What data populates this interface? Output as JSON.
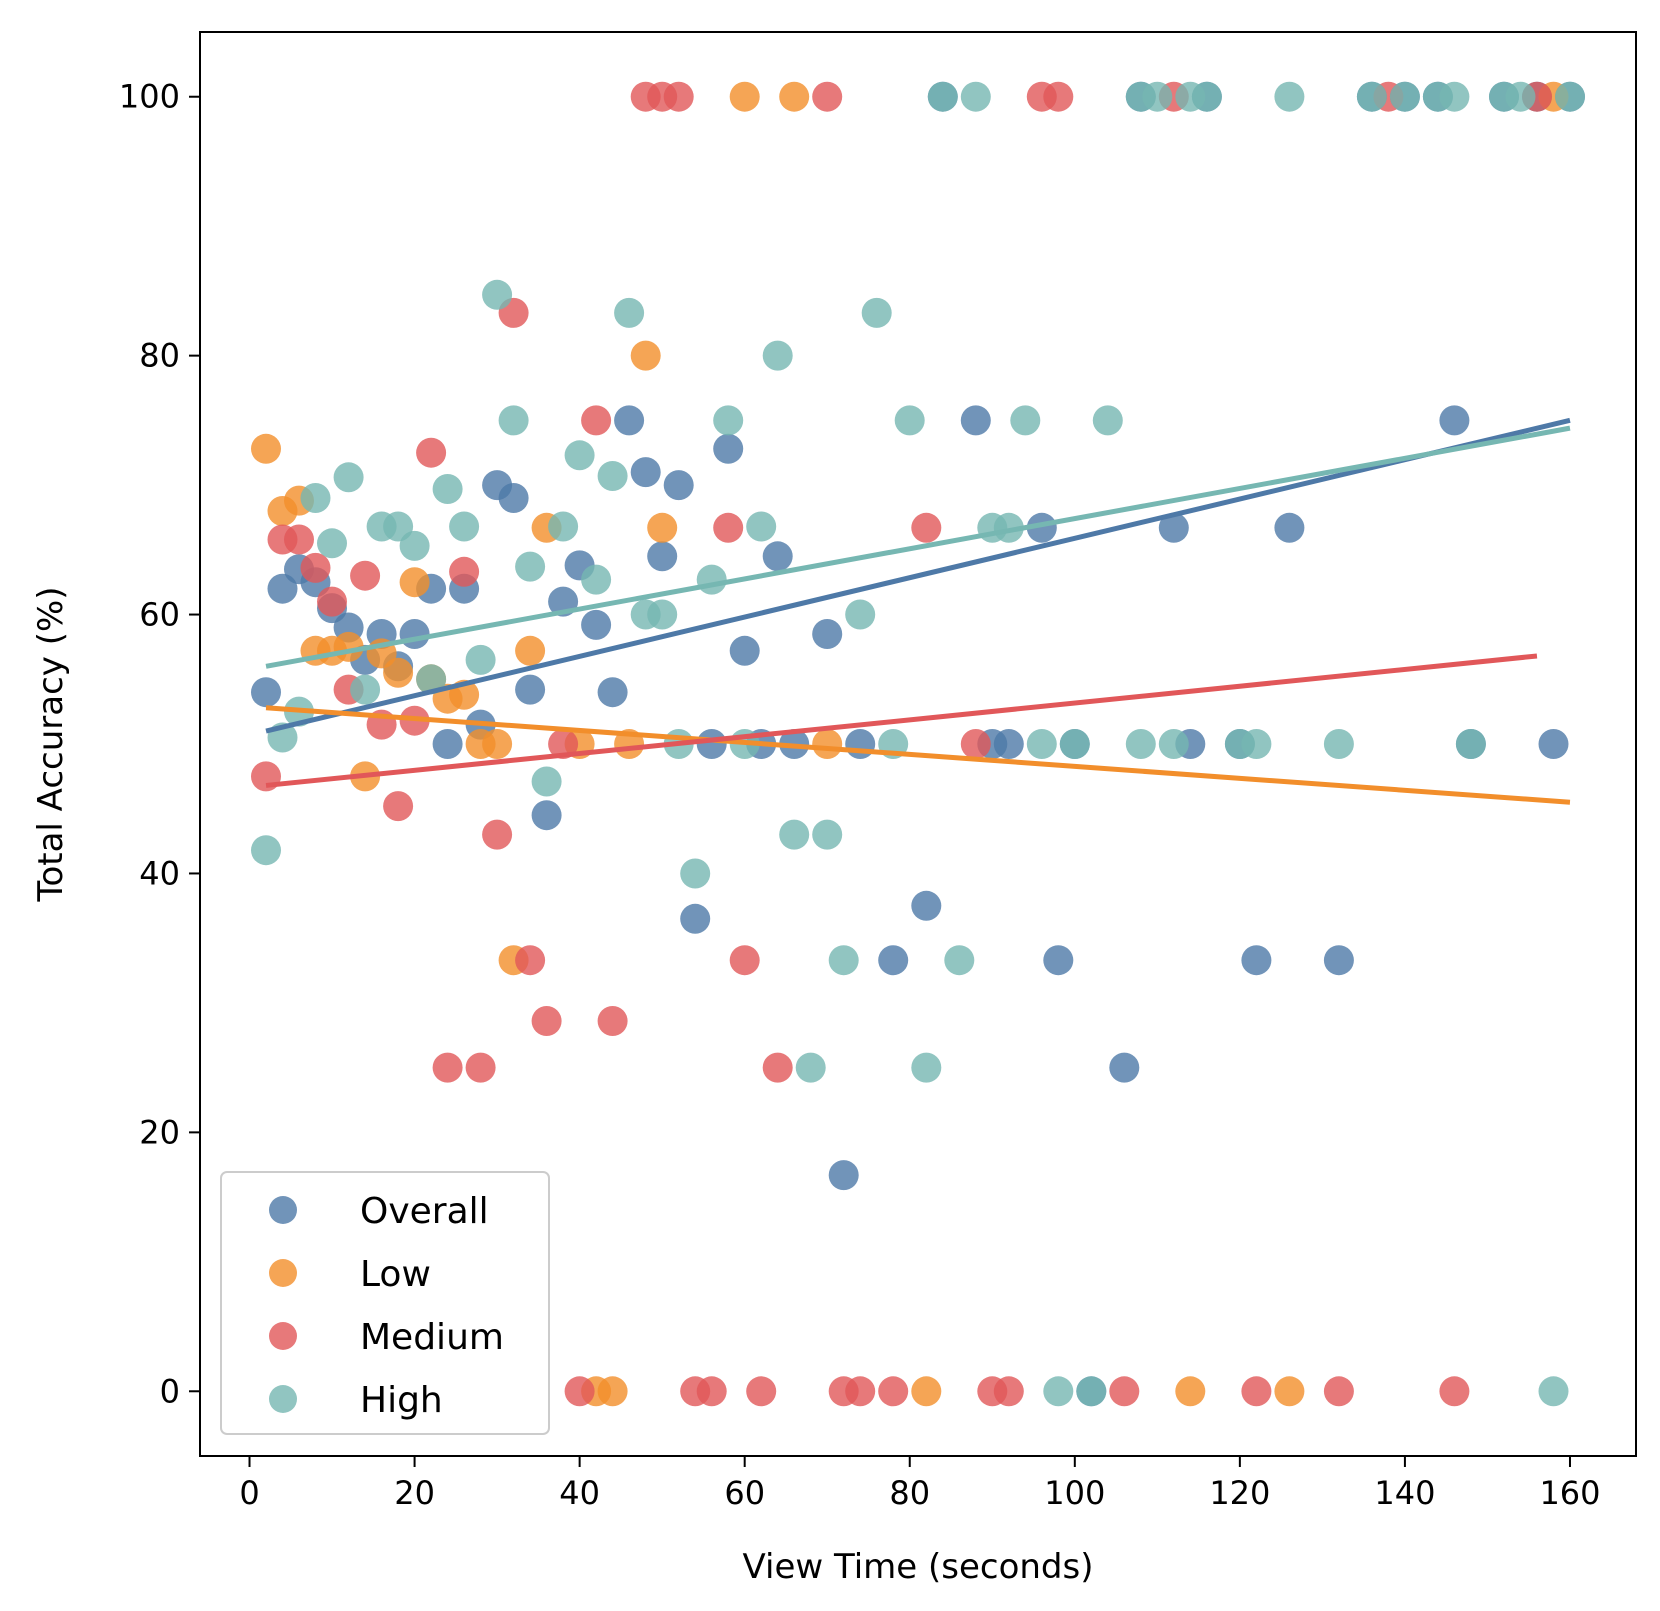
{
  "chart_data": {
    "type": "scatter",
    "title": "",
    "xlabel": "View Time (seconds)",
    "ylabel": "Total Accuracy (%)",
    "xlim": [
      -6,
      168
    ],
    "ylim": [
      -5,
      105
    ],
    "xticks": [
      0,
      20,
      40,
      60,
      80,
      100,
      120,
      140,
      160
    ],
    "yticks": [
      0,
      20,
      40,
      60,
      80,
      100
    ],
    "grid": false,
    "legend_position": "lower-left",
    "series": [
      {
        "name": "Overall",
        "color": "#4e79a7",
        "trend": [
          [
            2,
            51
          ],
          [
            160,
            75
          ]
        ],
        "points": [
          [
            2,
            54
          ],
          [
            4,
            62
          ],
          [
            6,
            63.5
          ],
          [
            8,
            62.5
          ],
          [
            10,
            60.5
          ],
          [
            12,
            59
          ],
          [
            14,
            56.5
          ],
          [
            16,
            58.5
          ],
          [
            18,
            56
          ],
          [
            20,
            58.5
          ],
          [
            22,
            62
          ],
          [
            24,
            50
          ],
          [
            26,
            62
          ],
          [
            28,
            51.5
          ],
          [
            30,
            70
          ],
          [
            32,
            69
          ],
          [
            34,
            54.2
          ],
          [
            36,
            44.5
          ],
          [
            38,
            61
          ],
          [
            40,
            63.8
          ],
          [
            42,
            59.2
          ],
          [
            44,
            54
          ],
          [
            46,
            75
          ],
          [
            48,
            71
          ],
          [
            50,
            64.5
          ],
          [
            52,
            70
          ],
          [
            54,
            36.5
          ],
          [
            56,
            50
          ],
          [
            58,
            72.8
          ],
          [
            60,
            57.2
          ],
          [
            62,
            50
          ],
          [
            64,
            64.5
          ],
          [
            66,
            50
          ],
          [
            70,
            58.5
          ],
          [
            72,
            16.7
          ],
          [
            74,
            50
          ],
          [
            78,
            33.3
          ],
          [
            82,
            37.5
          ],
          [
            88,
            75
          ],
          [
            90,
            50
          ],
          [
            92,
            50
          ],
          [
            96,
            66.7
          ],
          [
            98,
            33.3
          ],
          [
            100,
            50
          ],
          [
            106,
            25
          ],
          [
            112,
            66.7
          ],
          [
            114,
            50
          ],
          [
            120,
            50
          ],
          [
            122,
            33.3
          ],
          [
            126,
            66.7
          ],
          [
            132,
            33.3
          ],
          [
            146,
            75
          ],
          [
            148,
            50
          ],
          [
            158,
            50
          ],
          [
            84,
            100
          ],
          [
            108,
            100
          ],
          [
            116,
            100
          ],
          [
            136,
            100
          ],
          [
            140,
            100
          ],
          [
            144,
            100
          ],
          [
            152,
            100
          ],
          [
            156,
            100
          ],
          [
            160,
            100
          ],
          [
            102,
            0
          ]
        ]
      },
      {
        "name": "Low",
        "color": "#f28e2b",
        "trend": [
          [
            2,
            52.8
          ],
          [
            160,
            45.5
          ]
        ],
        "points": [
          [
            2,
            72.8
          ],
          [
            4,
            68
          ],
          [
            6,
            68.8
          ],
          [
            8,
            57.2
          ],
          [
            10,
            57.2
          ],
          [
            12,
            57.5
          ],
          [
            16,
            57
          ],
          [
            18,
            55.5
          ],
          [
            20,
            62.5
          ],
          [
            22,
            55
          ],
          [
            24,
            53.5
          ],
          [
            26,
            53.8
          ],
          [
            28,
            50
          ],
          [
            30,
            50
          ],
          [
            14,
            47.5
          ],
          [
            32,
            33.3
          ],
          [
            34,
            57.2
          ],
          [
            36,
            66.7
          ],
          [
            40,
            50
          ],
          [
            46,
            50
          ],
          [
            48,
            80
          ],
          [
            50,
            66.7
          ],
          [
            70,
            50
          ],
          [
            42,
            0
          ],
          [
            44,
            0
          ],
          [
            82,
            0
          ],
          [
            114,
            0
          ],
          [
            126,
            0
          ],
          [
            60,
            100
          ],
          [
            66,
            100
          ],
          [
            158,
            100
          ]
        ]
      },
      {
        "name": "Medium",
        "color": "#e15759",
        "trend": [
          [
            2,
            46.8
          ],
          [
            156,
            56.8
          ]
        ],
        "points": [
          [
            2,
            47.5
          ],
          [
            4,
            65.8
          ],
          [
            6,
            65.8
          ],
          [
            8,
            63.6
          ],
          [
            10,
            61
          ],
          [
            12,
            54.2
          ],
          [
            14,
            63
          ],
          [
            16,
            51.5
          ],
          [
            18,
            45.2
          ],
          [
            20,
            51.8
          ],
          [
            22,
            72.5
          ],
          [
            24,
            25
          ],
          [
            26,
            63.3
          ],
          [
            28,
            25
          ],
          [
            30,
            43
          ],
          [
            32,
            83.3
          ],
          [
            34,
            33.3
          ],
          [
            36,
            28.6
          ],
          [
            38,
            50
          ],
          [
            42,
            75
          ],
          [
            44,
            28.6
          ],
          [
            58,
            66.7
          ],
          [
            60,
            33.3
          ],
          [
            64,
            25
          ],
          [
            82,
            66.7
          ],
          [
            88,
            50
          ],
          [
            40,
            0
          ],
          [
            54,
            0
          ],
          [
            56,
            0
          ],
          [
            62,
            0
          ],
          [
            72,
            0
          ],
          [
            74,
            0
          ],
          [
            78,
            0
          ],
          [
            90,
            0
          ],
          [
            92,
            0
          ],
          [
            106,
            0
          ],
          [
            122,
            0
          ],
          [
            132,
            0
          ],
          [
            146,
            0
          ],
          [
            48,
            100
          ],
          [
            50,
            100
          ],
          [
            52,
            100
          ],
          [
            70,
            100
          ],
          [
            96,
            100
          ],
          [
            98,
            100
          ],
          [
            112,
            100
          ],
          [
            138,
            100
          ],
          [
            156,
            100
          ]
        ]
      },
      {
        "name": "High",
        "color": "#76b7b2",
        "trend": [
          [
            2,
            56
          ],
          [
            160,
            74.4
          ]
        ],
        "points": [
          [
            2,
            41.8
          ],
          [
            4,
            50.5
          ],
          [
            6,
            52.5
          ],
          [
            8,
            69
          ],
          [
            10,
            65.5
          ],
          [
            12,
            70.6
          ],
          [
            14,
            54.2
          ],
          [
            16,
            66.8
          ],
          [
            18,
            66.8
          ],
          [
            20,
            65.3
          ],
          [
            22,
            55
          ],
          [
            24,
            69.7
          ],
          [
            26,
            66.8
          ],
          [
            28,
            56.5
          ],
          [
            30,
            84.7
          ],
          [
            32,
            75
          ],
          [
            34,
            63.7
          ],
          [
            36,
            47.1
          ],
          [
            38,
            66.8
          ],
          [
            40,
            72.3
          ],
          [
            42,
            62.7
          ],
          [
            44,
            70.7
          ],
          [
            46,
            83.3
          ],
          [
            48,
            60
          ],
          [
            50,
            60
          ],
          [
            52,
            50
          ],
          [
            54,
            40
          ],
          [
            56,
            62.7
          ],
          [
            58,
            75
          ],
          [
            60,
            50
          ],
          [
            62,
            66.8
          ],
          [
            64,
            80
          ],
          [
            66,
            43
          ],
          [
            68,
            25
          ],
          [
            70,
            43
          ],
          [
            72,
            33.3
          ],
          [
            74,
            60
          ],
          [
            76,
            83.3
          ],
          [
            78,
            50
          ],
          [
            80,
            75
          ],
          [
            82,
            25
          ],
          [
            86,
            33.3
          ],
          [
            90,
            66.7
          ],
          [
            92,
            66.7
          ],
          [
            94,
            75
          ],
          [
            96,
            50
          ],
          [
            100,
            50
          ],
          [
            104,
            75
          ],
          [
            108,
            50
          ],
          [
            112,
            50
          ],
          [
            120,
            50
          ],
          [
            122,
            50
          ],
          [
            132,
            50
          ],
          [
            148,
            50
          ],
          [
            84,
            100
          ],
          [
            88,
            100
          ],
          [
            108,
            100
          ],
          [
            110,
            100
          ],
          [
            114,
            100
          ],
          [
            116,
            100
          ],
          [
            126,
            100
          ],
          [
            136,
            100
          ],
          [
            140,
            100
          ],
          [
            144,
            100
          ],
          [
            146,
            100
          ],
          [
            152,
            100
          ],
          [
            154,
            100
          ],
          [
            160,
            100
          ],
          [
            98,
            0
          ],
          [
            102,
            0
          ],
          [
            158,
            0
          ]
        ]
      }
    ]
  }
}
